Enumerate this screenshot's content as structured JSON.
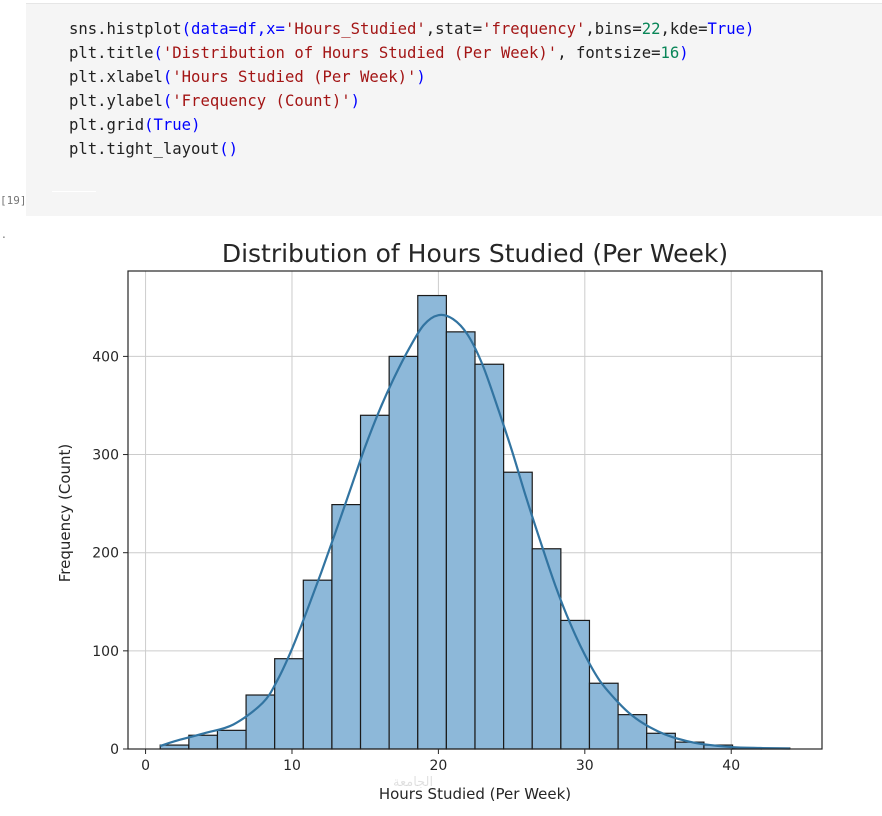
{
  "notebook": {
    "execution_count": "[19]",
    "output_marker": ".",
    "code": {
      "line1": {
        "prefix": "sns.histplot",
        "p1": "(data=df,x=",
        "s1": "'Hours_Studied'",
        "p2": ",stat=",
        "s2": "'frequency'",
        "p3": ",bins=",
        "n1": "22",
        "p4": ",kde=",
        "k1": "True",
        "p5": ")"
      },
      "line2": {
        "prefix": "plt.title",
        "p1": "(",
        "s1": "'Distribution of Hours Studied (Per Week)'",
        "p2": ", fontsize=",
        "n1": "16",
        "p3": ")"
      },
      "line3": {
        "prefix": "plt.xlabel",
        "p1": "(",
        "s1": "'Hours Studied (Per Week)'",
        "p2": ")"
      },
      "line4": {
        "prefix": "plt.ylabel",
        "p1": "(",
        "s1": "'Frequency (Count)'",
        "p2": ")"
      },
      "line5": {
        "prefix": "plt.grid",
        "p1": "(",
        "k1": "True",
        "p2": ")"
      },
      "line6": {
        "prefix": "plt.tight_layout",
        "p1": "()"
      }
    }
  },
  "chart_data": {
    "type": "bar",
    "title": "Distribution of Hours Studied (Per Week)",
    "xlabel": "Hours Studied (Per Week)",
    "ylabel": "Frequency (Count)",
    "xlim": [
      -1.2,
      46.2
    ],
    "ylim": [
      0,
      487
    ],
    "xticks": [
      0,
      10,
      20,
      30,
      40
    ],
    "yticks": [
      0,
      100,
      200,
      300,
      400
    ],
    "grid": true,
    "bin_edges": [
      1.0,
      2.955,
      4.909,
      6.864,
      8.818,
      10.773,
      12.727,
      14.682,
      16.636,
      18.591,
      20.545,
      22.5,
      24.455,
      26.409,
      28.364,
      30.318,
      32.273,
      34.227,
      36.182,
      38.136,
      40.091,
      42.045,
      44.0
    ],
    "values": [
      4,
      14,
      19,
      55,
      92,
      172,
      249,
      340,
      400,
      462,
      425,
      392,
      282,
      204,
      131,
      67,
      35,
      16,
      7,
      4,
      1,
      1
    ],
    "kde": {
      "x": [
        1,
        2,
        4,
        6,
        8,
        9,
        10,
        11,
        12,
        13,
        14,
        15,
        16,
        17,
        18,
        19,
        20,
        21,
        22,
        23,
        24,
        25,
        26,
        27,
        28,
        29,
        30,
        31,
        32,
        33,
        34,
        35,
        36,
        37,
        38,
        40,
        42,
        44
      ],
      "y": [
        3,
        8,
        16,
        25,
        47,
        70,
        102,
        140,
        180,
        222,
        265,
        308,
        346,
        379,
        408,
        432,
        442,
        438,
        422,
        392,
        350,
        305,
        256,
        210,
        166,
        128,
        96,
        70,
        52,
        37,
        26,
        18,
        12,
        8,
        5,
        2,
        1,
        0.5
      ],
      "color": "#3274a1"
    },
    "bar_fill": "#8db8d9",
    "bar_edge": "#1a1a1a"
  },
  "watermark": "الجامعة"
}
